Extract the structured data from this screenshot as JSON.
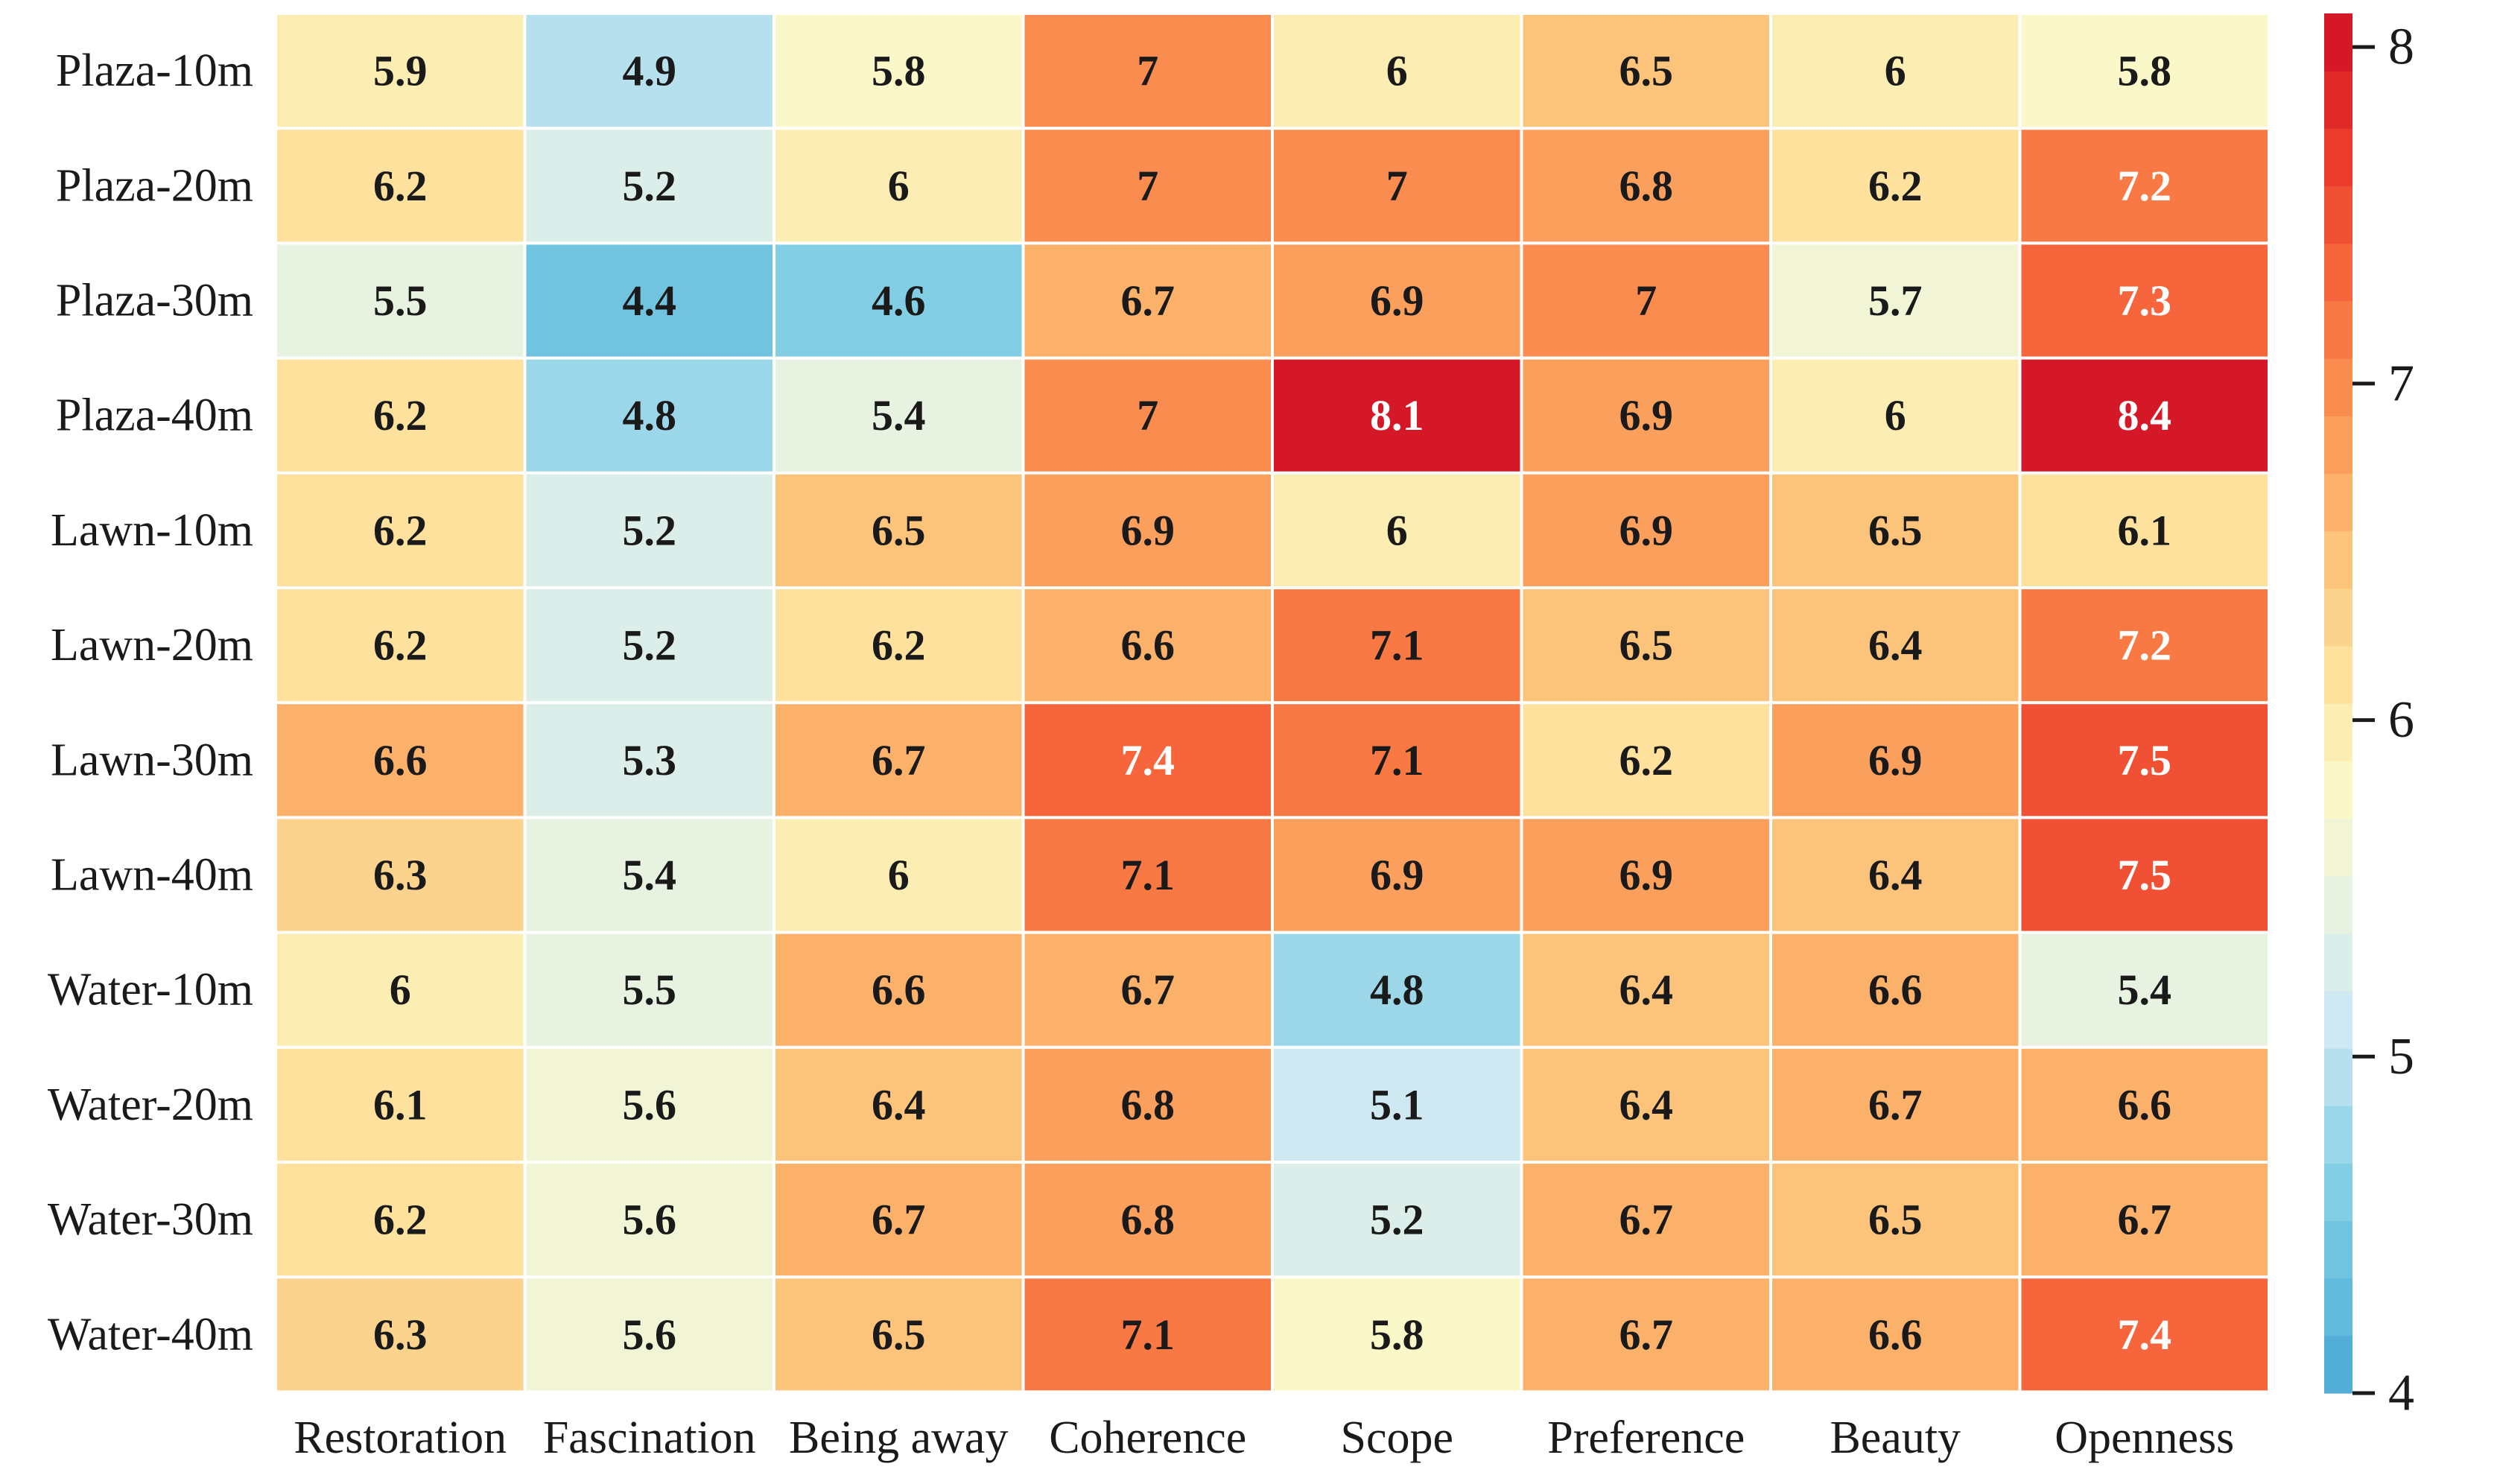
{
  "chart_data": {
    "type": "heatmap",
    "title": "",
    "xlabel": "",
    "ylabel": "",
    "rows": [
      "Plaza-10m",
      "Plaza-20m",
      "Plaza-30m",
      "Plaza-40m",
      "Lawn-10m",
      "Lawn-20m",
      "Lawn-30m",
      "Lawn-40m",
      "Water-10m",
      "Water-20m",
      "Water-30m",
      "Water-40m"
    ],
    "columns": [
      "Restoration",
      "Fascination",
      "Being away",
      "Coherence",
      "Scope",
      "Preference",
      "Beauty",
      "Openness"
    ],
    "values": [
      [
        5.9,
        4.9,
        5.8,
        7.0,
        6.0,
        6.5,
        6.0,
        5.8
      ],
      [
        6.2,
        5.2,
        6.0,
        7.0,
        7.0,
        6.8,
        6.2,
        7.2
      ],
      [
        5.5,
        4.4,
        4.6,
        6.7,
        6.9,
        7.0,
        5.7,
        7.3
      ],
      [
        6.2,
        4.8,
        5.4,
        7.0,
        8.1,
        6.9,
        6.0,
        8.4
      ],
      [
        6.2,
        5.2,
        6.5,
        6.9,
        6.0,
        6.9,
        6.5,
        6.1
      ],
      [
        6.2,
        5.2,
        6.2,
        6.6,
        7.1,
        6.5,
        6.4,
        7.2
      ],
      [
        6.6,
        5.3,
        6.7,
        7.4,
        7.1,
        6.2,
        6.9,
        7.5
      ],
      [
        6.3,
        5.4,
        6.0,
        7.1,
        6.9,
        6.9,
        6.4,
        7.5
      ],
      [
        6.0,
        5.5,
        6.6,
        6.7,
        4.8,
        6.4,
        6.6,
        5.4
      ],
      [
        6.1,
        5.6,
        6.4,
        6.8,
        5.1,
        6.4,
        6.7,
        6.6
      ],
      [
        6.2,
        5.6,
        6.7,
        6.8,
        5.2,
        6.7,
        6.5,
        6.7
      ],
      [
        6.3,
        5.6,
        6.5,
        7.1,
        5.8,
        6.7,
        6.6,
        7.4
      ]
    ],
    "value_labels": [
      [
        "5.9",
        "4.9",
        "5.8",
        "7",
        "6",
        "6.5",
        "6",
        "5.8"
      ],
      [
        "6.2",
        "5.2",
        "6",
        "7",
        "7",
        "6.8",
        "6.2",
        "7.2"
      ],
      [
        "5.5",
        "4.4",
        "4.6",
        "6.7",
        "6.9",
        "7",
        "5.7",
        "7.3"
      ],
      [
        "6.2",
        "4.8",
        "5.4",
        "7",
        "8.1",
        "6.9",
        "6",
        "8.4"
      ],
      [
        "6.2",
        "5.2",
        "6.5",
        "6.9",
        "6",
        "6.9",
        "6.5",
        "6.1"
      ],
      [
        "6.2",
        "5.2",
        "6.2",
        "6.6",
        "7.1",
        "6.5",
        "6.4",
        "7.2"
      ],
      [
        "6.6",
        "5.3",
        "6.7",
        "7.4",
        "7.1",
        "6.2",
        "6.9",
        "7.5"
      ],
      [
        "6.3",
        "5.4",
        "6",
        "7.1",
        "6.9",
        "6.9",
        "6.4",
        "7.5"
      ],
      [
        "6",
        "5.5",
        "6.6",
        "6.7",
        "4.8",
        "6.4",
        "6.6",
        "5.4"
      ],
      [
        "6.1",
        "5.6",
        "6.4",
        "6.8",
        "5.1",
        "6.4",
        "6.7",
        "6.6"
      ],
      [
        "6.2",
        "5.6",
        "6.7",
        "6.8",
        "5.2",
        "6.7",
        "6.5",
        "6.7"
      ],
      [
        "6.3",
        "5.6",
        "6.5",
        "7.1",
        "5.8",
        "6.7",
        "6.6",
        "7.4"
      ]
    ],
    "colorbar": {
      "range": [
        4,
        8.1
      ],
      "ticks": [
        4,
        5,
        6,
        7,
        8
      ],
      "tick_labels": [
        "4",
        "5",
        "6",
        "7",
        "8"
      ],
      "colormap": "RdYlBu_r",
      "steps": 24
    },
    "colormap_stops": [
      {
        "t": 0.0,
        "color": "#4aa8d4"
      },
      {
        "t": 0.14,
        "color": "#7ecde4"
      },
      {
        "t": 0.27,
        "color": "#cfe9f2"
      },
      {
        "t": 0.36,
        "color": "#e9f3e0"
      },
      {
        "t": 0.44,
        "color": "#fbf8c8"
      },
      {
        "t": 0.5,
        "color": "#fde9a6"
      },
      {
        "t": 0.6,
        "color": "#fcc57c"
      },
      {
        "t": 0.7,
        "color": "#fb9a57"
      },
      {
        "t": 0.8,
        "color": "#f86b3d"
      },
      {
        "t": 0.9,
        "color": "#ea3a2c"
      },
      {
        "t": 1.0,
        "color": "#cf0f26"
      }
    ],
    "light_text_threshold": 7.15,
    "text_color_dark": "#1a1a1a",
    "text_color_light": "#ffffff",
    "grid_line_color": "#ffffff"
  }
}
